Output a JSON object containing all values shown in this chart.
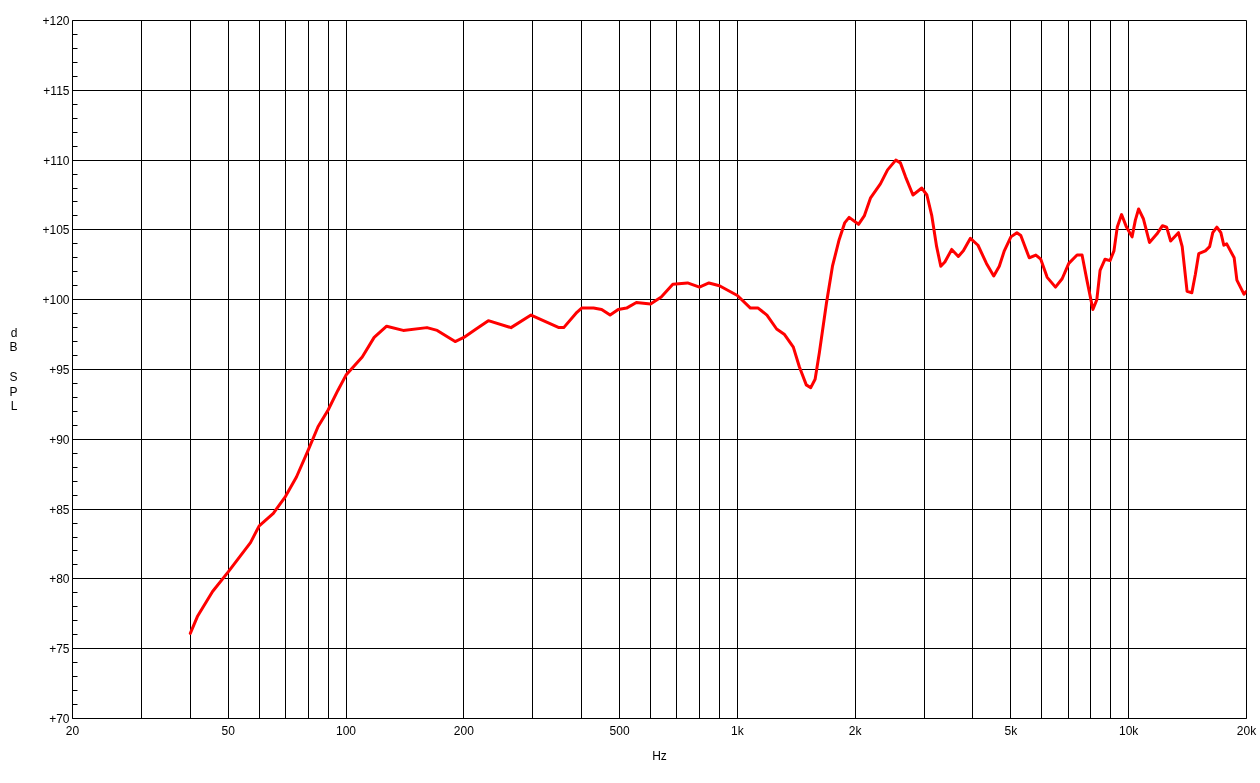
{
  "chart_data": {
    "type": "line",
    "xlabel": "Hz",
    "ylabel": "dB SPL",
    "log": "x",
    "grid": true,
    "xlim": [
      20,
      20000
    ],
    "ylim": [
      70,
      120
    ],
    "xticks": [
      20,
      {
        "value": 30,
        "label": null
      },
      {
        "value": 40,
        "label": null
      },
      50,
      {
        "value": 60,
        "label": null
      },
      {
        "value": 70,
        "label": null
      },
      {
        "value": 80,
        "label": null
      },
      {
        "value": 90,
        "label": null
      },
      100,
      200,
      {
        "value": 300,
        "label": null
      },
      {
        "value": 400,
        "label": null
      },
      500,
      {
        "value": 600,
        "label": null
      },
      {
        "value": 700,
        "label": null
      },
      {
        "value": 800,
        "label": null
      },
      {
        "value": 900,
        "label": null
      },
      {
        "value": 1000,
        "label": "1k"
      },
      {
        "value": 2000,
        "label": "2k"
      },
      {
        "value": 3000,
        "label": null
      },
      {
        "value": 4000,
        "label": null
      },
      {
        "value": 5000,
        "label": "5k"
      },
      {
        "value": 6000,
        "label": null
      },
      {
        "value": 7000,
        "label": null
      },
      {
        "value": 8000,
        "label": null
      },
      {
        "value": 9000,
        "label": null
      },
      {
        "value": 10000,
        "label": "10k"
      },
      {
        "value": 20000,
        "label": "20k"
      }
    ],
    "yticks": [
      {
        "value": 70,
        "label": "+70"
      },
      {
        "value": 75,
        "label": "+75"
      },
      {
        "value": 80,
        "label": "+80"
      },
      {
        "value": 85,
        "label": "+85"
      },
      {
        "value": 90,
        "label": "+90"
      },
      {
        "value": 95,
        "label": "+95"
      },
      {
        "value": 100,
        "label": "+100"
      },
      {
        "value": 105,
        "label": "+105"
      },
      {
        "value": 110,
        "label": "+110"
      },
      {
        "value": 115,
        "label": "+115"
      },
      {
        "value": 120,
        "label": "+120"
      }
    ],
    "x": [
      40,
      41.7,
      45.6,
      50,
      57,
      60,
      65.2,
      70,
      74.7,
      80,
      84.8,
      90,
      95.3,
      100,
      110,
      118,
      127,
      140,
      161,
      171,
      190,
      200,
      215,
      231,
      264,
      297,
      350,
      360,
      389,
      400,
      429,
      450,
      473,
      496,
      521,
      552,
      600,
      639,
      684,
      746,
      800,
      846,
      900,
      1000,
      1080,
      1130,
      1190,
      1260,
      1320,
      1390,
      1440,
      1500,
      1540,
      1580,
      1620,
      1690,
      1750,
      1820,
      1880,
      1930,
      2040,
      2110,
      2190,
      2320,
      2420,
      2540,
      2610,
      2690,
      2810,
      2960,
      3050,
      3140,
      3230,
      3310,
      3390,
      3530,
      3670,
      3780,
      3940,
      4120,
      4330,
      4520,
      4670,
      4810,
      5000,
      5180,
      5300,
      5570,
      5790,
      5960,
      6190,
      6500,
      6760,
      7030,
      7380,
      7600,
      7820,
      8100,
      8290,
      8450,
      8700,
      8960,
      9170,
      9350,
      9590,
      9870,
      10200,
      10400,
      10600,
      10900,
      11300,
      11800,
      12200,
      12500,
      12800,
      13400,
      13700,
      14100,
      14500,
      14800,
      15100,
      15700,
      16100,
      16400,
      16800,
      17200,
      17500,
      17800,
      18600,
      18900,
      19700,
      20000
    ],
    "series": [
      {
        "color": "#ff0000",
        "values": [
          76.1,
          77.3,
          79.1,
          80.5,
          82.6,
          83.8,
          84.7,
          85.9,
          87.3,
          89.2,
          90.9,
          92.1,
          93.5,
          94.6,
          95.9,
          97.3,
          98.1,
          97.8,
          98.0,
          97.8,
          97.0,
          97.3,
          97.9,
          98.5,
          98.0,
          98.9,
          98.0,
          98.0,
          99.1,
          99.4,
          99.4,
          99.3,
          98.9,
          99.3,
          99.4,
          99.8,
          99.7,
          100.2,
          101.1,
          101.2,
          100.9,
          101.2,
          101.0,
          100.3,
          99.4,
          99.4,
          98.9,
          97.9,
          97.5,
          96.6,
          95.2,
          93.9,
          93.7,
          94.3,
          96.2,
          99.8,
          102.4,
          104.3,
          105.5,
          105.9,
          105.4,
          106.0,
          107.3,
          108.3,
          109.3,
          110.0,
          109.8,
          108.8,
          107.5,
          108.0,
          107.5,
          106.0,
          103.8,
          102.4,
          102.7,
          103.6,
          103.1,
          103.5,
          104.4,
          103.9,
          102.6,
          101.7,
          102.4,
          103.5,
          104.5,
          104.8,
          104.6,
          103.0,
          103.2,
          102.9,
          101.6,
          100.9,
          101.5,
          102.6,
          103.2,
          103.2,
          101.4,
          99.3,
          100.0,
          102.1,
          102.9,
          102.8,
          103.5,
          105.2,
          106.1,
          105.2,
          104.5,
          105.7,
          106.5,
          105.8,
          104.1,
          104.7,
          105.3,
          105.2,
          104.2,
          104.8,
          103.8,
          100.6,
          100.5,
          101.8,
          103.3,
          103.5,
          103.8,
          104.8,
          105.2,
          104.8,
          103.9,
          104.0,
          103.0,
          101.4,
          100.4,
          100.6
        ]
      }
    ]
  }
}
